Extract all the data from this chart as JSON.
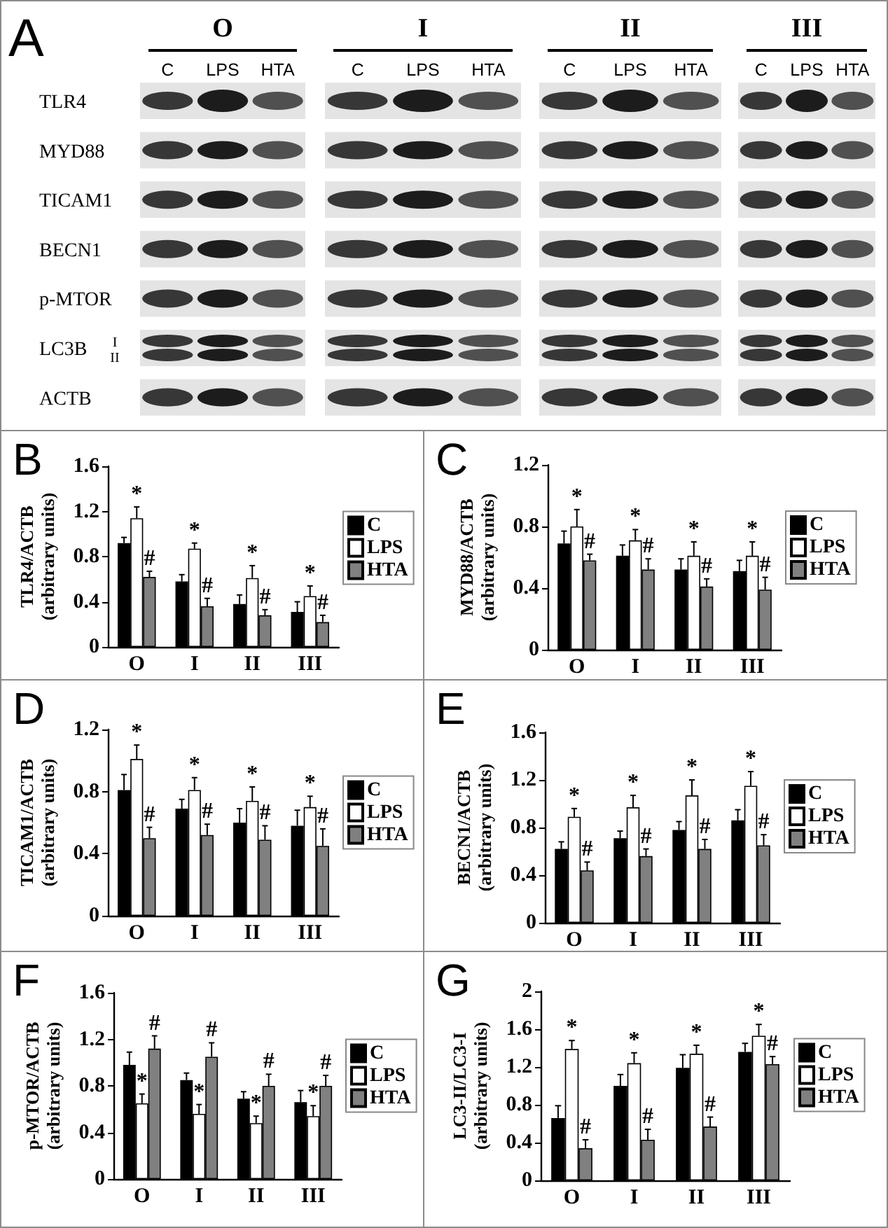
{
  "chart_data": [
    {
      "type": "other",
      "title": "A",
      "categories": [
        "C",
        "LPS",
        "HTA",
        "C",
        "LPS",
        "HTA",
        "C",
        "LPS",
        "HTA",
        "C",
        "LPS",
        "HTA"
      ],
      "y_categories": [
        "TLR4",
        "MYD88",
        "TICAM1",
        "BECN1",
        "p-MTOR",
        "LC3B",
        "ACTB"
      ],
      "annotations": [
        "O",
        "I",
        "II",
        "III",
        "I",
        "II"
      ]
    },
    {
      "type": "bar",
      "title": "B",
      "ylabel": "TLR4/ACTB\n(arbitrary units)",
      "categories": [
        "O",
        "I",
        "II",
        "III"
      ],
      "ylim": [
        0,
        1.6
      ],
      "yticks": [
        0,
        0.4,
        0.8,
        1.2,
        1.6
      ],
      "legend": "right",
      "series": [
        {
          "name": "C",
          "color": "#000000",
          "values": [
            0.92,
            0.58,
            0.38,
            0.31
          ],
          "errors": [
            [
              0.92,
              0.97
            ],
            [
              0.58,
              0.64
            ],
            [
              0.38,
              0.46
            ],
            [
              0.31,
              0.4
            ]
          ]
        },
        {
          "name": "LPS",
          "color": "#ffffff",
          "values": [
            1.14,
            0.87,
            0.61,
            0.45
          ],
          "errors": [
            [
              1.14,
              1.24
            ],
            [
              0.87,
              0.92
            ],
            [
              0.61,
              0.72
            ],
            [
              0.45,
              0.54
            ]
          ],
          "value_labels": [
            "*",
            "*",
            "*",
            "*"
          ]
        },
        {
          "name": "HTA",
          "color": "#808080",
          "values": [
            0.62,
            0.36,
            0.28,
            0.22
          ],
          "errors": [
            [
              0.62,
              0.67
            ],
            [
              0.36,
              0.43
            ],
            [
              0.28,
              0.33
            ],
            [
              0.22,
              0.28
            ]
          ],
          "value_labels": [
            "#",
            "#",
            "#",
            "#"
          ]
        }
      ]
    },
    {
      "type": "bar",
      "title": "C",
      "ylabel": "MYD88/ACTB\n(arbitrary units)",
      "categories": [
        "O",
        "I",
        "II",
        "III"
      ],
      "ylim": [
        0,
        1.2
      ],
      "yticks": [
        0,
        0.4,
        0.8,
        1.2
      ],
      "legend": "right",
      "series": [
        {
          "name": "C",
          "color": "#000000",
          "values": [
            0.69,
            0.61,
            0.52,
            0.51
          ],
          "errors": [
            [
              0.69,
              0.77
            ],
            [
              0.61,
              0.68
            ],
            [
              0.52,
              0.59
            ],
            [
              0.51,
              0.58
            ]
          ]
        },
        {
          "name": "LPS",
          "color": "#ffffff",
          "values": [
            0.8,
            0.71,
            0.61,
            0.61
          ],
          "errors": [
            [
              0.8,
              0.91
            ],
            [
              0.71,
              0.78
            ],
            [
              0.61,
              0.7
            ],
            [
              0.61,
              0.7
            ]
          ],
          "value_labels": [
            "*",
            "*",
            "*",
            "*"
          ]
        },
        {
          "name": "HTA",
          "color": "#808080",
          "values": [
            0.58,
            0.52,
            0.41,
            0.39
          ],
          "errors": [
            [
              0.58,
              0.62
            ],
            [
              0.52,
              0.59
            ],
            [
              0.41,
              0.46
            ],
            [
              0.39,
              0.47
            ]
          ],
          "value_labels": [
            "#",
            "#",
            "#",
            "#"
          ]
        }
      ]
    },
    {
      "type": "bar",
      "title": "D",
      "ylabel": "TICAM1/ACTB\n(arbitrary units)",
      "categories": [
        "O",
        "I",
        "II",
        "III"
      ],
      "ylim": [
        0,
        1.2
      ],
      "yticks": [
        0,
        0.4,
        0.8,
        1.2
      ],
      "legend": "right",
      "series": [
        {
          "name": "C",
          "color": "#000000",
          "values": [
            0.81,
            0.69,
            0.6,
            0.58
          ],
          "errors": [
            [
              0.81,
              0.91
            ],
            [
              0.69,
              0.75
            ],
            [
              0.6,
              0.69
            ],
            [
              0.58,
              0.68
            ]
          ]
        },
        {
          "name": "LPS",
          "color": "#ffffff",
          "values": [
            1.01,
            0.81,
            0.74,
            0.7
          ],
          "errors": [
            [
              1.01,
              1.1
            ],
            [
              0.81,
              0.89
            ],
            [
              0.74,
              0.83
            ],
            [
              0.7,
              0.77
            ]
          ],
          "value_labels": [
            "*",
            "*",
            "*",
            "*"
          ]
        },
        {
          "name": "HTA",
          "color": "#808080",
          "values": [
            0.5,
            0.52,
            0.49,
            0.45
          ],
          "errors": [
            [
              0.5,
              0.57
            ],
            [
              0.52,
              0.59
            ],
            [
              0.49,
              0.58
            ],
            [
              0.45,
              0.56
            ]
          ],
          "value_labels": [
            "#",
            "#",
            "#",
            "#"
          ]
        }
      ]
    },
    {
      "type": "bar",
      "title": "E",
      "ylabel": "BECN1/ACTB\n(arbitrary units)",
      "categories": [
        "O",
        "I",
        "II",
        "III"
      ],
      "ylim": [
        0,
        1.6
      ],
      "yticks": [
        0,
        0.4,
        0.8,
        1.2,
        1.6
      ],
      "legend": "right",
      "series": [
        {
          "name": "C",
          "color": "#000000",
          "values": [
            0.62,
            0.71,
            0.78,
            0.86
          ],
          "errors": [
            [
              0.62,
              0.68
            ],
            [
              0.71,
              0.77
            ],
            [
              0.78,
              0.85
            ],
            [
              0.86,
              0.95
            ]
          ]
        },
        {
          "name": "LPS",
          "color": "#ffffff",
          "values": [
            0.89,
            0.97,
            1.07,
            1.15
          ],
          "errors": [
            [
              0.89,
              0.96
            ],
            [
              0.97,
              1.07
            ],
            [
              1.07,
              1.2
            ],
            [
              1.15,
              1.27
            ]
          ],
          "value_labels": [
            "*",
            "*",
            "*",
            "*"
          ]
        },
        {
          "name": "HTA",
          "color": "#808080",
          "values": [
            0.44,
            0.56,
            0.62,
            0.65
          ],
          "errors": [
            [
              0.44,
              0.51
            ],
            [
              0.56,
              0.62
            ],
            [
              0.62,
              0.7
            ],
            [
              0.65,
              0.74
            ]
          ],
          "value_labels": [
            "#",
            "#",
            "#",
            "#"
          ]
        }
      ]
    },
    {
      "type": "bar",
      "title": "F",
      "ylabel": "p-MTOR/ACTB\n(arbitrary units)",
      "categories": [
        "O",
        "I",
        "II",
        "III"
      ],
      "ylim": [
        0,
        1.6
      ],
      "yticks": [
        0,
        0.4,
        0.8,
        1.2,
        1.6
      ],
      "legend": "right",
      "series": [
        {
          "name": "C",
          "color": "#000000",
          "values": [
            0.98,
            0.85,
            0.69,
            0.66
          ],
          "errors": [
            [
              0.98,
              1.09
            ],
            [
              0.85,
              0.91
            ],
            [
              0.69,
              0.75
            ],
            [
              0.66,
              0.76
            ]
          ]
        },
        {
          "name": "LPS",
          "color": "#ffffff",
          "values": [
            0.65,
            0.56,
            0.48,
            0.54
          ],
          "errors": [
            [
              0.65,
              0.73
            ],
            [
              0.56,
              0.64
            ],
            [
              0.48,
              0.54
            ],
            [
              0.54,
              0.63
            ]
          ],
          "value_labels": [
            "*",
            "*",
            "*",
            "*"
          ]
        },
        {
          "name": "HTA",
          "color": "#808080",
          "values": [
            1.12,
            1.05,
            0.8,
            0.8
          ],
          "errors": [
            [
              1.12,
              1.23
            ],
            [
              1.05,
              1.17
            ],
            [
              0.8,
              0.9
            ],
            [
              0.8,
              0.89
            ]
          ],
          "value_labels": [
            "#",
            "#",
            "#",
            "#"
          ]
        }
      ]
    },
    {
      "type": "bar",
      "title": "G",
      "ylabel": "LC3-II/LC3-I\n(arbitrary units)",
      "categories": [
        "O",
        "I",
        "II",
        "III"
      ],
      "ylim": [
        0,
        2
      ],
      "yticks": [
        0,
        0.4,
        0.8,
        1.2,
        1.6,
        2
      ],
      "legend": "right",
      "series": [
        {
          "name": "C",
          "color": "#000000",
          "values": [
            0.66,
            1.0,
            1.19,
            1.36
          ],
          "errors": [
            [
              0.66,
              0.79
            ],
            [
              1.0,
              1.12
            ],
            [
              1.19,
              1.33
            ],
            [
              1.36,
              1.45
            ]
          ]
        },
        {
          "name": "LPS",
          "color": "#ffffff",
          "values": [
            1.39,
            1.24,
            1.34,
            1.53
          ],
          "errors": [
            [
              1.39,
              1.48
            ],
            [
              1.24,
              1.35
            ],
            [
              1.34,
              1.43
            ],
            [
              1.53,
              1.65
            ]
          ],
          "value_labels": [
            "*",
            "*",
            "*",
            "*"
          ]
        },
        {
          "name": "HTA",
          "color": "#808080",
          "values": [
            0.34,
            0.43,
            0.57,
            1.23
          ],
          "errors": [
            [
              0.34,
              0.43
            ],
            [
              0.43,
              0.54
            ],
            [
              0.57,
              0.67
            ],
            [
              1.23,
              1.31
            ]
          ],
          "value_labels": [
            "#",
            "#",
            "#",
            "#"
          ]
        }
      ]
    }
  ]
}
